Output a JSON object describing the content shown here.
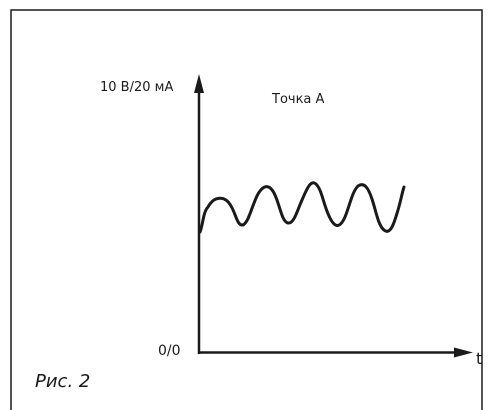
{
  "figure": {
    "y_axis_max_label": "10 В/20 мА",
    "origin_label": "0/0",
    "x_axis_label": "t",
    "series_label": "Точка A",
    "caption": "Рис. 2",
    "line_color": "#1a1a1a"
  }
}
